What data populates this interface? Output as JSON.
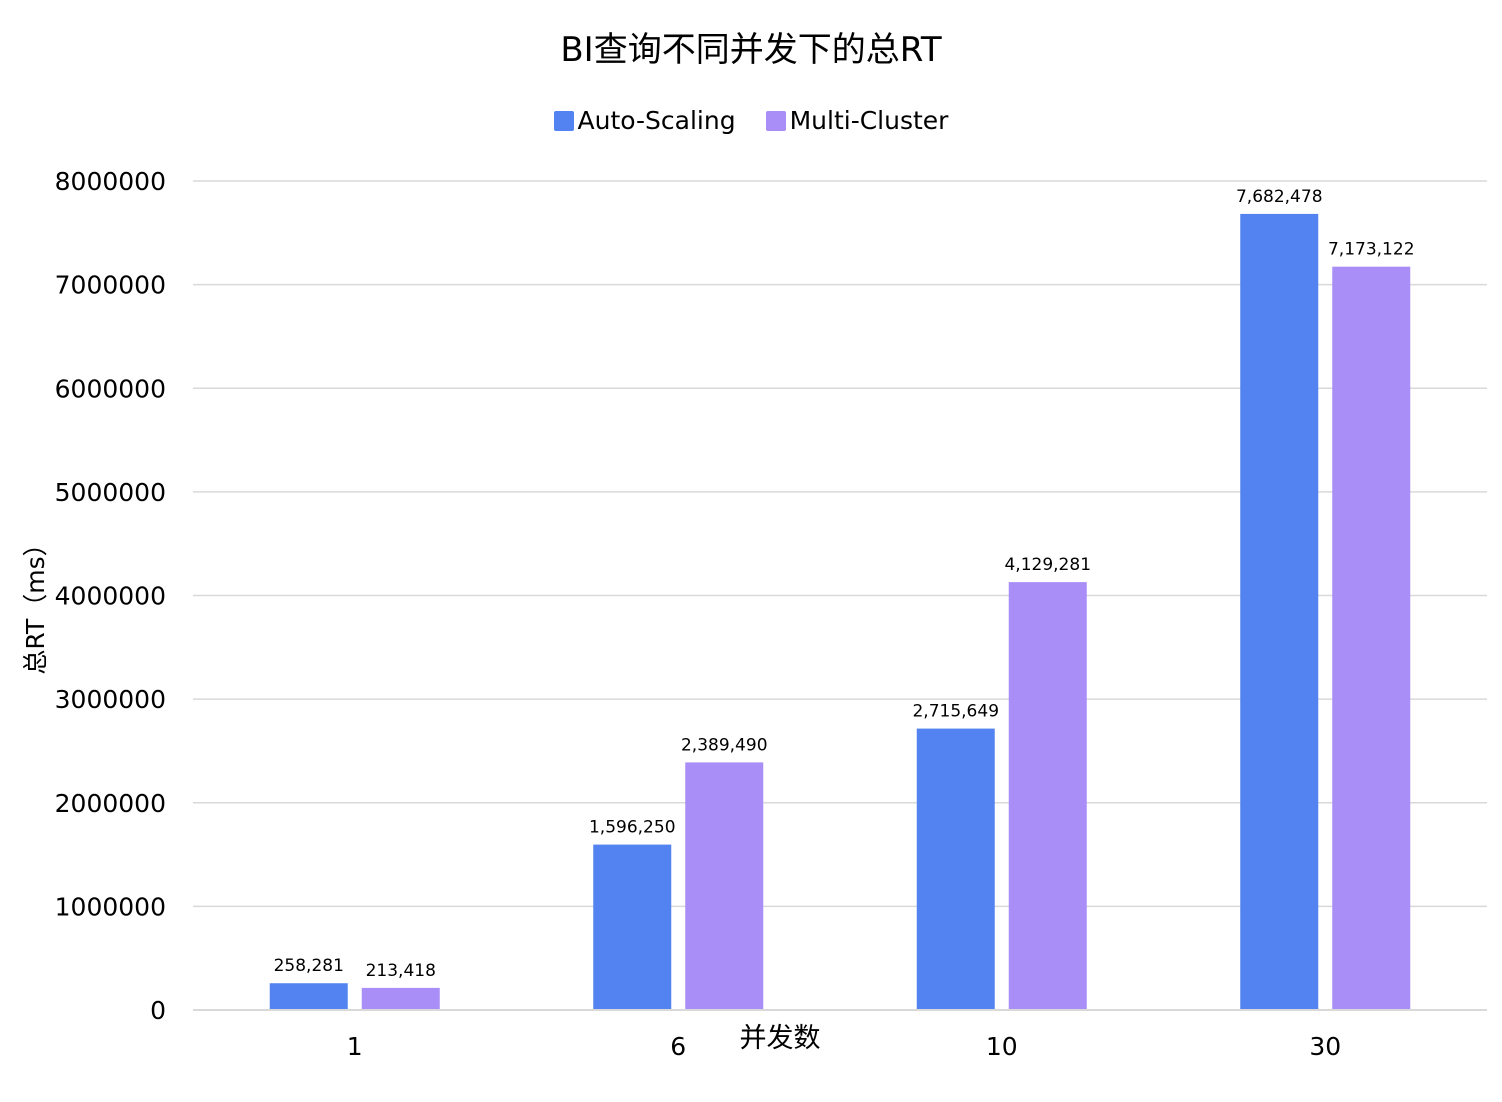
{
  "chart_data": {
    "type": "bar",
    "title": "BI查询不同并发下的总RT",
    "xlabel": "并发数",
    "ylabel": "总RT（ms）",
    "categories": [
      "1",
      "6",
      "10",
      "30"
    ],
    "series": [
      {
        "name": "Auto-Scaling",
        "color": "#5283F0",
        "values": [
          258281,
          1596250,
          2715649,
          7682478
        ],
        "labels": [
          "258,281",
          "1,596,250",
          "2,715,649",
          "7,682,478"
        ]
      },
      {
        "name": "Multi-Cluster",
        "color": "#A98EF7",
        "values": [
          213418,
          2389490,
          4129281,
          7173122
        ],
        "labels": [
          "213,418",
          "2,389,490",
          "4,129,281",
          "7,173,122"
        ]
      }
    ],
    "ylim": [
      0,
      8000000
    ],
    "yticks": [
      {
        "value": 0,
        "label": "0"
      },
      {
        "value": 1000000,
        "label": "1000000"
      },
      {
        "value": 2000000,
        "label": "2000000"
      },
      {
        "value": 3000000,
        "label": "3000000"
      },
      {
        "value": 4000000,
        "label": "4000000"
      },
      {
        "value": 5000000,
        "label": "5000000"
      },
      {
        "value": 6000000,
        "label": "6000000"
      },
      {
        "value": 7000000,
        "label": "7000000"
      },
      {
        "value": 8000000,
        "label": "8000000"
      }
    ],
    "grid": true,
    "legend_position": "top-center",
    "gridline_color": "#D9D9D9"
  }
}
